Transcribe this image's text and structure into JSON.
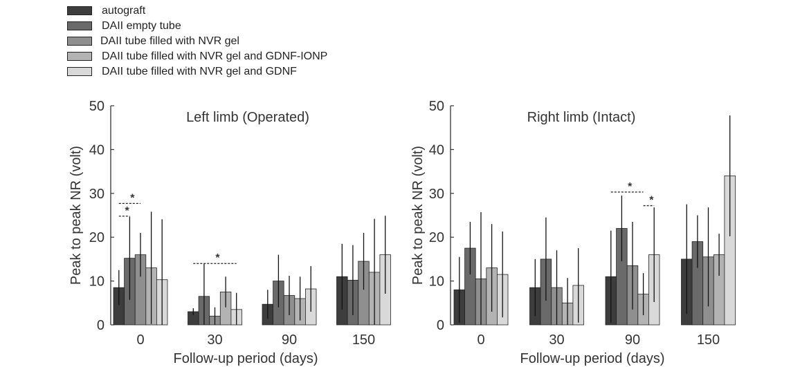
{
  "legend": {
    "items": [
      {
        "label": "autograft",
        "color": "#3d3d3d"
      },
      {
        "label": "DAII empty tube",
        "color": "#6a6a6a"
      },
      {
        "label": "DAII tube filled with NVR gel",
        "color": "#8f8f8f"
      },
      {
        "label": "DAII tube filled with NVR gel and GDNF-IONP",
        "color": "#b3b3b3"
      },
      {
        "label": "DAII tube filled with NVR gel and GDNF",
        "color": "#d9d9d9"
      }
    ]
  },
  "chart_data": [
    {
      "type": "bar",
      "title": "Left limb (Operated)",
      "xlabel": "Follow-up period (days)",
      "ylabel": "Peak to peak NR (volt)",
      "ylim": [
        0,
        50
      ],
      "yticks": [
        "0",
        "10",
        "20",
        "30",
        "40",
        "50"
      ],
      "categories": [
        "0",
        "30",
        "90",
        "150"
      ],
      "series": [
        {
          "name": "autograft",
          "values": [
            8.5,
            3,
            4.7,
            11
          ],
          "errors": [
            4,
            0.8,
            3.3,
            7.5
          ]
        },
        {
          "name": "DAII empty tube",
          "values": [
            15.2,
            6.5,
            10,
            10.2
          ],
          "errors": [
            9.5,
            7.5,
            6,
            8
          ]
        },
        {
          "name": "DAII tube filled with NVR gel",
          "values": [
            16,
            2,
            6.7,
            14.5
          ],
          "errors": [
            5,
            2,
            4.5,
            6.5
          ]
        },
        {
          "name": "DAII tube filled with NVR gel and GDNF-IONP",
          "values": [
            13,
            7.5,
            6,
            12
          ],
          "errors": [
            12.8,
            3.5,
            5,
            12.2
          ]
        },
        {
          "name": "DAII tube filled with NVR gel and GDNF",
          "values": [
            10.3,
            3.5,
            8.2,
            16
          ],
          "errors": [
            13.8,
            3.8,
            5.2,
            8.9
          ]
        }
      ],
      "significance": [
        {
          "label": "*",
          "category": "0",
          "from_series": 0,
          "to_series": 1,
          "y": 24.8
        },
        {
          "label": "*",
          "category": "0",
          "from_series": 0,
          "to_series": 2,
          "y": 27.7
        },
        {
          "label": "*",
          "category": "30",
          "from_series": 0,
          "to_series": 4,
          "y": 14
        }
      ]
    },
    {
      "type": "bar",
      "title": "Right limb (Intact)",
      "xlabel": "Follow-up period (days)",
      "ylabel": "Peak to peak NR (volt)",
      "ylim": [
        0,
        50
      ],
      "yticks": [
        "0",
        "10",
        "20",
        "30",
        "40",
        "50"
      ],
      "categories": [
        "0",
        "30",
        "90",
        "150"
      ],
      "series": [
        {
          "name": "autograft",
          "values": [
            8,
            8.5,
            11,
            15
          ],
          "errors": [
            7.5,
            6.5,
            10.5,
            12.5
          ]
        },
        {
          "name": "DAII empty tube",
          "values": [
            17.5,
            15,
            22,
            19
          ],
          "errors": [
            6,
            9.5,
            7.5,
            6
          ]
        },
        {
          "name": "DAII tube filled with NVR gel",
          "values": [
            10.5,
            8.5,
            13.5,
            15.5
          ],
          "errors": [
            15.2,
            8.5,
            10,
            11.3
          ]
        },
        {
          "name": "DAII tube filled with NVR gel and GDNF-IONP",
          "values": [
            13,
            5,
            7,
            16
          ],
          "errors": [
            10,
            5.7,
            4.8,
            4.8
          ]
        },
        {
          "name": "DAII tube filled with NVR gel and GDNF",
          "values": [
            11.5,
            9,
            16,
            34
          ],
          "errors": [
            9.8,
            8.5,
            10.8,
            13.8
          ]
        }
      ],
      "significance": [
        {
          "label": "*",
          "category": "90",
          "from_series": 0,
          "to_series": 3,
          "y": 30.3
        },
        {
          "label": "*",
          "category": "90",
          "from_series": 3,
          "to_series": 4,
          "y": 27.2
        }
      ]
    }
  ]
}
